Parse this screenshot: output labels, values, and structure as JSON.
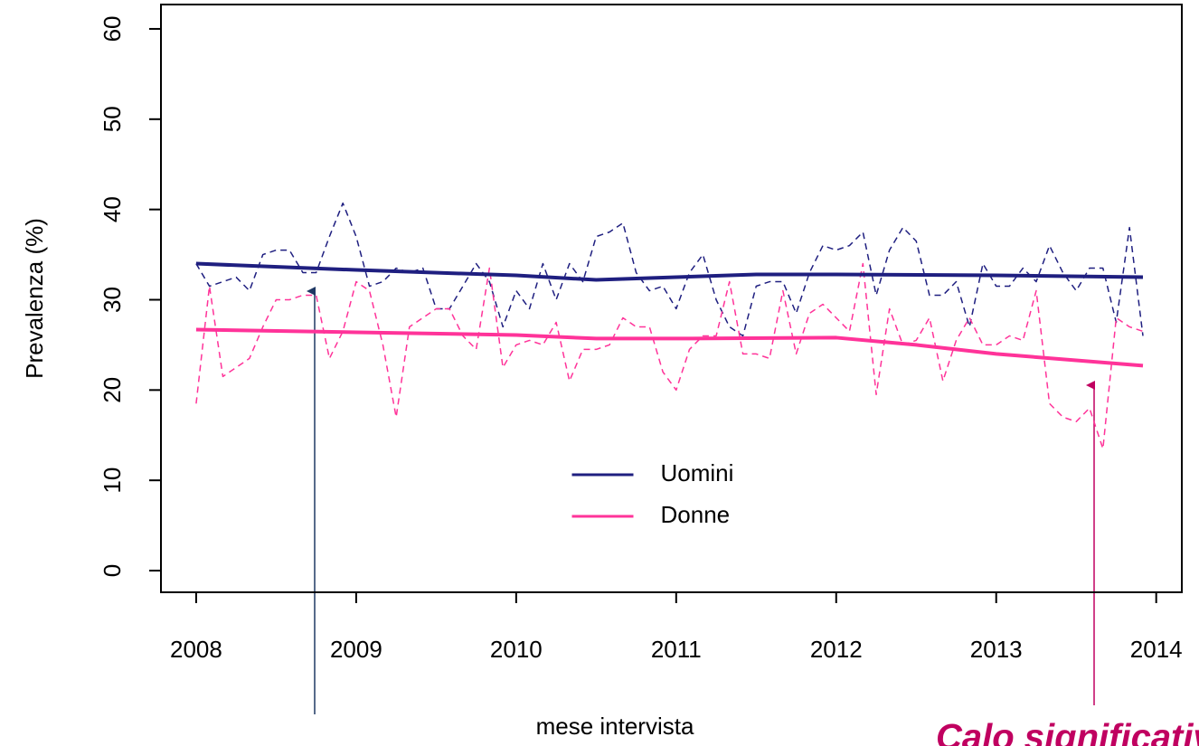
{
  "chart_data": {
    "type": "line",
    "xlabel": "mese intervista",
    "ylabel": "Prevalenza (%)",
    "annotation": "Calo significativo",
    "xlim": [
      2007.78,
      2014.16
    ],
    "xticks": [
      2008,
      2009,
      2010,
      2011,
      2012,
      2013,
      2014
    ],
    "ylim": [
      -2.4,
      62.7
    ],
    "yticks": [
      0,
      10,
      20,
      30,
      40,
      50,
      60
    ],
    "legend": "bottom-center",
    "x": [
      2008,
      2008.083,
      2008.167,
      2008.25,
      2008.333,
      2008.417,
      2008.5,
      2008.583,
      2008.667,
      2008.75,
      2008.833,
      2008.917,
      2009,
      2009.083,
      2009.167,
      2009.25,
      2009.333,
      2009.417,
      2009.5,
      2009.583,
      2009.667,
      2009.75,
      2009.833,
      2009.917,
      2010,
      2010.083,
      2010.167,
      2010.25,
      2010.333,
      2010.417,
      2010.5,
      2010.583,
      2010.667,
      2010.75,
      2010.833,
      2010.917,
      2011,
      2011.083,
      2011.167,
      2011.25,
      2011.333,
      2011.417,
      2011.5,
      2011.583,
      2011.667,
      2011.75,
      2011.833,
      2011.917,
      2012,
      2012.083,
      2012.167,
      2012.25,
      2012.333,
      2012.417,
      2012.5,
      2012.583,
      2012.667,
      2012.75,
      2012.833,
      2012.917,
      2013,
      2013.083,
      2013.167,
      2013.25,
      2013.333,
      2013.417,
      2013.5,
      2013.583,
      2013.667,
      2013.75,
      2013.833,
      2013.917
    ],
    "series": [
      {
        "color": "#1f1f80",
        "linestyle": "dashed",
        "width": 1.5,
        "values": [
          34,
          31.5,
          32,
          32.5,
          31,
          35,
          35.5,
          35.5,
          33,
          33,
          37,
          40.7,
          37,
          31.5,
          32,
          33.5,
          33,
          33.5,
          29,
          29,
          31.5,
          34,
          32,
          27,
          31,
          29,
          34,
          30,
          34,
          32,
          37,
          37.5,
          38.5,
          33,
          31,
          31.5,
          29,
          33,
          35,
          30,
          27,
          26,
          31.5,
          32,
          32,
          28.5,
          33,
          36,
          35.5,
          36,
          37.5,
          30.5,
          35.5,
          38,
          36.5,
          30.5,
          30.5,
          32,
          27,
          34,
          31.5,
          31.5,
          33.5,
          32,
          36,
          33,
          31,
          33.5,
          33.5,
          27.5,
          38,
          26
        ]
      },
      {
        "color": "#ff3399",
        "linestyle": "dashed",
        "width": 1.5,
        "values": [
          18.5,
          31.5,
          21.5,
          22.5,
          23.5,
          27,
          30,
          30,
          30.5,
          30.5,
          23.5,
          26.5,
          32,
          31,
          25,
          17,
          27,
          28,
          29,
          29,
          26,
          24.5,
          33.5,
          22.5,
          25,
          25.5,
          25,
          27.5,
          21,
          24.5,
          24.5,
          25,
          28,
          27,
          27,
          22,
          20,
          24.5,
          26,
          26,
          32,
          24,
          24,
          23.5,
          31,
          24,
          28.5,
          29.5,
          28,
          26.5,
          34,
          19.5,
          29,
          25,
          25.5,
          28,
          21,
          25.5,
          28,
          25,
          25,
          26,
          25.5,
          31,
          18.5,
          17,
          16.5,
          18,
          13.5,
          28,
          27,
          26.5
        ]
      },
      {
        "name": "Uomini",
        "color": "#1f1f80",
        "linestyle": "solid",
        "width": 4,
        "x": [
          2008,
          2009,
          2010,
          2010.5,
          2011,
          2011.5,
          2012,
          2013,
          2013.917
        ],
        "values": [
          34,
          33.3,
          32.7,
          32.2,
          32.5,
          32.8,
          32.8,
          32.7,
          32.5
        ]
      },
      {
        "name": "Donne",
        "color": "#ff3399",
        "linestyle": "solid",
        "width": 4,
        "x": [
          2008,
          2009,
          2010,
          2010.5,
          2011,
          2012,
          2012.5,
          2013,
          2013.917
        ],
        "values": [
          26.7,
          26.4,
          26.1,
          25.7,
          25.7,
          25.8,
          25,
          24,
          22.7
        ]
      }
    ]
  }
}
